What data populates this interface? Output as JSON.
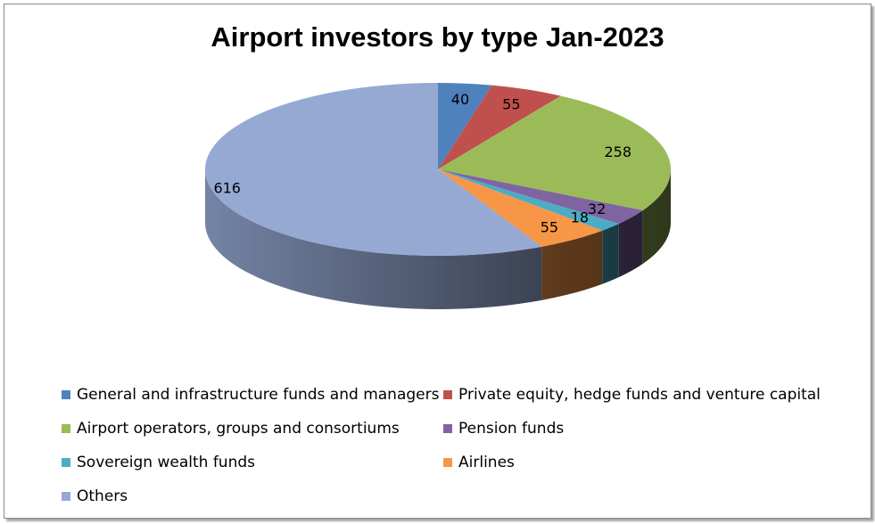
{
  "chart_data": {
    "type": "pie",
    "title": "Airport investors by type Jan-2023",
    "categories": [
      "General and infrastructure funds and managers",
      "Private equity, hedge funds and venture capital",
      "Airport operators, groups and consortiums",
      "Pension funds",
      "Sovereign wealth funds",
      "Airlines",
      "Others"
    ],
    "values": [
      40,
      55,
      258,
      32,
      18,
      55,
      616
    ],
    "colors": [
      "#4f81bd",
      "#c0504d",
      "#9bbb59",
      "#8064a2",
      "#4bacc6",
      "#f79646",
      "#95a9d3"
    ],
    "legend_position": "bottom"
  }
}
